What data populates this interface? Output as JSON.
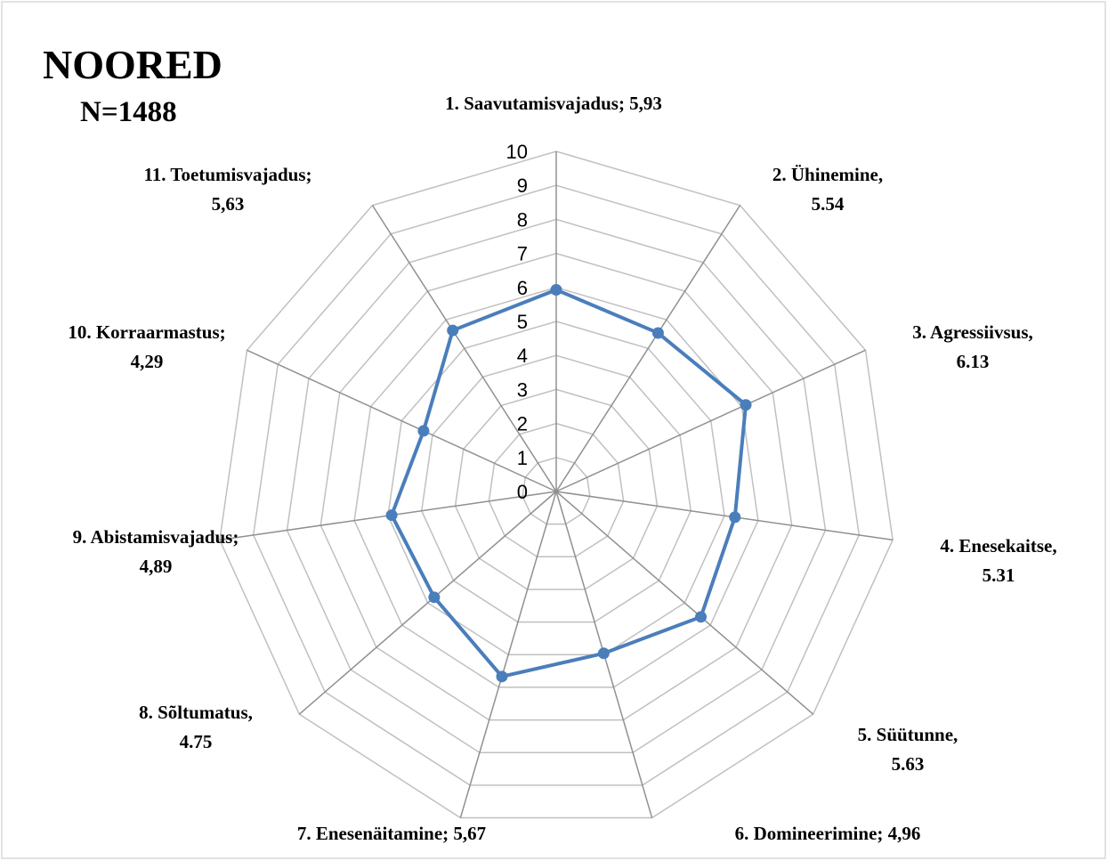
{
  "chart_data": {
    "type": "radar",
    "title": "NOORED",
    "subtitle": "N=1488",
    "categories": [
      "1. Saavutamisvajadus; 5,93",
      "2. Ühinemine,\n5.54",
      "3. Agressiivsus,\n6.13",
      "4. Enesekaitse,\n5.31",
      "5. Süütunne,\n5.63",
      "6. Domineerimine; 4,96",
      "7. Enesenäitamine; 5,67",
      "8. Sõltumatus,\n4.75",
      "9. Abistamisvajadus;\n4,89",
      "10. Korraarmastus;\n4,29",
      "11. Toetumisvajadus;\n5,63"
    ],
    "values": [
      5.93,
      5.54,
      6.13,
      5.31,
      5.63,
      4.96,
      5.67,
      4.75,
      4.89,
      4.29,
      5.63
    ],
    "color": "#4a7ebb",
    "ylim": [
      0,
      10
    ],
    "yticks": [
      0,
      1,
      2,
      3,
      4,
      5,
      6,
      7,
      8,
      9,
      10
    ],
    "grid": true
  }
}
